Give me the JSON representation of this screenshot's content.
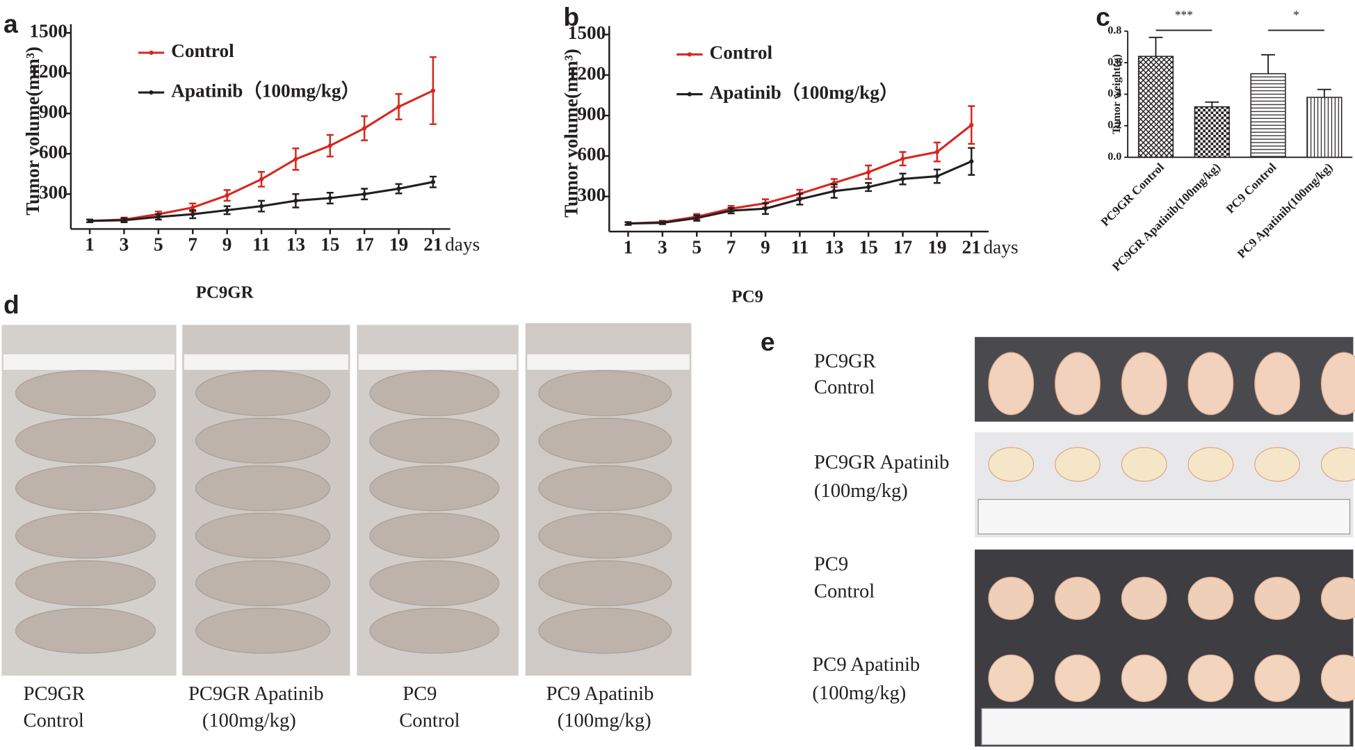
{
  "panel_labels": [
    "a",
    "b",
    "c",
    "d",
    "e"
  ],
  "chart_data": [
    {
      "type": "line",
      "xlabel": "days",
      "ylabel": "Tumor volume(mm³)",
      "x": [
        1,
        3,
        5,
        7,
        9,
        11,
        13,
        15,
        17,
        19,
        21
      ],
      "xlim": [
        0,
        22
      ],
      "xticks": [
        1,
        3,
        5,
        7,
        9,
        11,
        13,
        15,
        17,
        19,
        21
      ],
      "ylim": [
        40,
        1500
      ],
      "yticks": [
        300,
        600,
        900,
        1200,
        1500
      ],
      "series": [
        {
          "name": "Control",
          "color": "#d7261e",
          "values": [
            100,
            110,
            150,
            200,
            290,
            410,
            560,
            660,
            790,
            950,
            1070
          ],
          "errors": [
            10,
            15,
            20,
            30,
            40,
            55,
            80,
            80,
            90,
            95,
            250
          ]
        },
        {
          "name": "Apatinib（100mg/kg）",
          "color": "#231f20",
          "values": [
            100,
            105,
            130,
            150,
            180,
            210,
            250,
            270,
            300,
            340,
            390
          ],
          "errors": [
            10,
            15,
            20,
            30,
            30,
            40,
            50,
            40,
            40,
            35,
            40
          ]
        }
      ]
    },
    {
      "type": "line",
      "xlabel": "days",
      "ylabel": "Tumor volume(mm³)",
      "x": [
        1,
        3,
        5,
        7,
        9,
        11,
        13,
        15,
        17,
        19,
        21
      ],
      "xlim": [
        0,
        22
      ],
      "xticks": [
        1,
        3,
        5,
        7,
        9,
        11,
        13,
        15,
        17,
        19,
        21
      ],
      "ylim": [
        40,
        1500
      ],
      "yticks": [
        300,
        600,
        900,
        1200,
        1500
      ],
      "series": [
        {
          "name": "Control",
          "color": "#d7261e",
          "values": [
            100,
            110,
            150,
            210,
            250,
            320,
            400,
            480,
            580,
            630,
            830
          ],
          "errors": [
            10,
            10,
            20,
            20,
            30,
            30,
            30,
            50,
            50,
            70,
            140
          ]
        },
        {
          "name": "Apatinib（100mg/kg）",
          "color": "#231f20",
          "values": [
            100,
            105,
            140,
            195,
            210,
            280,
            340,
            370,
            430,
            450,
            560
          ],
          "errors": [
            10,
            10,
            20,
            20,
            40,
            40,
            50,
            30,
            40,
            50,
            100
          ]
        }
      ]
    },
    {
      "type": "bar",
      "ylabel": "Tumor weight(g)",
      "categories": [
        "PC9GR Control",
        "PC9GR  Apatinib(100mg/kg)",
        "PC9 Control",
        "PC9  Apatinib(100mg/kg)"
      ],
      "values": [
        0.64,
        0.32,
        0.53,
        0.38
      ],
      "errors": [
        0.12,
        0.03,
        0.12,
        0.05
      ],
      "patterns": [
        "crosshatch",
        "checker",
        "horizontal",
        "vertical"
      ],
      "ylim": [
        0,
        0.8
      ],
      "yticks": [
        {
          "value": 0,
          "label": "0.0"
        },
        {
          "value": 0.2,
          "label": "0.2"
        },
        {
          "value": 0.4,
          "label": "0.4"
        },
        {
          "value": 0.6,
          "label": "0.6"
        },
        {
          "value": 0.8,
          "label": "0.8"
        }
      ],
      "annotations": [
        "***",
        "*"
      ]
    }
  ],
  "photo_panels": {
    "d": {
      "headings": [
        "PC9GR",
        "PC9"
      ],
      "captions": [
        [
          "PC9GR",
          "Control"
        ],
        [
          "PC9GR Apatinib",
          "(100mg/kg)"
        ],
        [
          "PC9",
          "Control"
        ],
        [
          "PC9 Apatinib",
          "(100mg/kg)"
        ]
      ]
    },
    "e": {
      "rows": [
        [
          "PC9GR",
          "Control"
        ],
        [
          "PC9GR Apatinib",
          "(100mg/kg)"
        ],
        [
          "PC9",
          "Control"
        ],
        [
          "PC9   Apatinib",
          "(100mg/kg)"
        ]
      ]
    }
  }
}
